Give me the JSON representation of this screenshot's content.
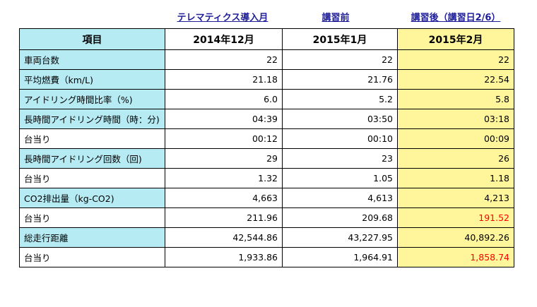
{
  "phase_labels": {
    "telematics": "テレマティクス導入月",
    "before": "講習前",
    "after": "講習後（講習日2/6）"
  },
  "table": {
    "headers": [
      "項目",
      "2014年12月",
      "2015年1月",
      "2015年2月"
    ],
    "rows": [
      {
        "label": "車両台数",
        "values": [
          "22",
          "22",
          "22"
        ]
      },
      {
        "label": "平均燃費（km/L)",
        "values": [
          "21.18",
          "21.76",
          "22.54"
        ]
      },
      {
        "label": "アイドリング時間比率（%)",
        "values": [
          "6.0",
          "5.2",
          "5.8"
        ]
      },
      {
        "label": "長時間アイドリング時間（時：分)",
        "values": [
          "04:39",
          "03:50",
          "03:18"
        ]
      },
      {
        "label": "台当り",
        "values": [
          "00:12",
          "00:10",
          "00:09"
        ]
      },
      {
        "label": "長時間アイドリング回数（回)",
        "values": [
          "29",
          "23",
          "26"
        ]
      },
      {
        "label": "台当り",
        "values": [
          "1.32",
          "1.05",
          "1.18"
        ]
      },
      {
        "label": "CO2排出量（kg-CO2)",
        "values": [
          "4,663",
          "4,613",
          "4,213"
        ]
      },
      {
        "label": "台当り",
        "values": [
          "211.96",
          "209.68",
          "191.52"
        ]
      },
      {
        "label": "総走行距離",
        "values": [
          "42,544.86",
          "43,227.95",
          "40,892.26"
        ]
      },
      {
        "label": "台当り",
        "values": [
          "1,933.86",
          "1,964.91",
          "1,858.74"
        ]
      }
    ]
  },
  "colors": {
    "label_bg": "#b7ebf4",
    "after_bg": "#fff59b",
    "highlight_text": "#ff0000",
    "phase_label_text": "#1f1f9a"
  }
}
